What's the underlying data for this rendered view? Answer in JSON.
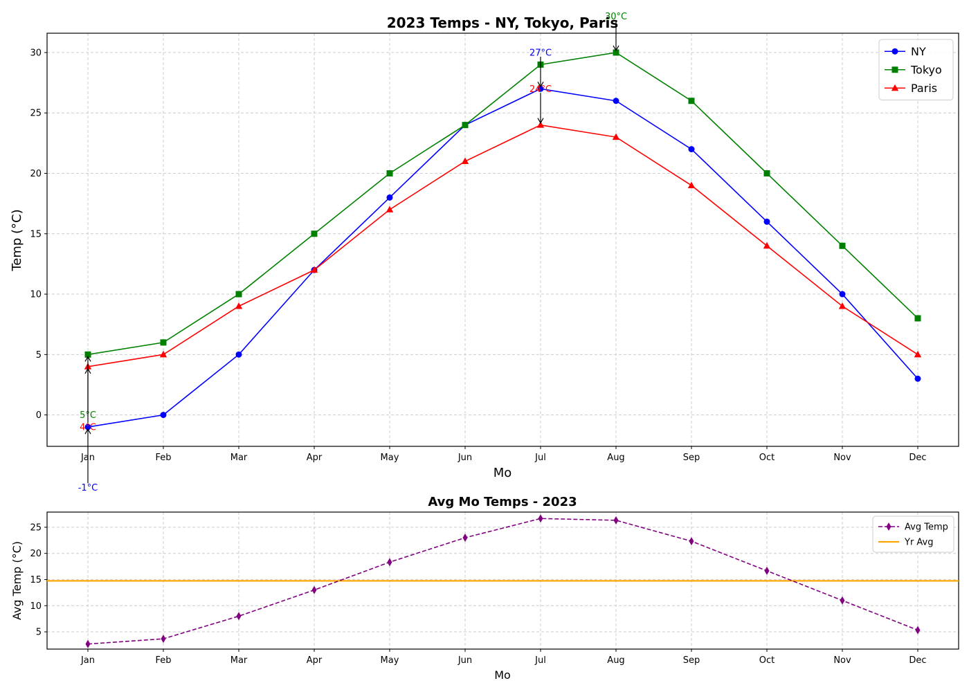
{
  "chart_data": [
    {
      "type": "line",
      "title": "2023 Temps - NY, Tokyo, Paris",
      "xlabel": "Mo",
      "ylabel": "Temp (°C)",
      "categories": [
        "Jan",
        "Feb",
        "Mar",
        "Apr",
        "May",
        "Jun",
        "Jul",
        "Aug",
        "Sep",
        "Oct",
        "Nov",
        "Dec"
      ],
      "ylim": [
        -2.6,
        31.6
      ],
      "yticks": [
        0,
        5,
        10,
        15,
        20,
        25,
        30
      ],
      "grid": true,
      "legend": "top-right",
      "series": [
        {
          "name": "NY",
          "color": "#0000ff",
          "marker": "circle",
          "values": [
            -1,
            0,
            5,
            12,
            18,
            24,
            27,
            26,
            22,
            16,
            10,
            3
          ]
        },
        {
          "name": "Tokyo",
          "color": "#008000",
          "marker": "square",
          "values": [
            5,
            6,
            10,
            15,
            20,
            24,
            29,
            30,
            26,
            20,
            14,
            8
          ]
        },
        {
          "name": "Paris",
          "color": "#ff0000",
          "marker": "triangle",
          "values": [
            4,
            5,
            9,
            12,
            17,
            21,
            24,
            23,
            19,
            14,
            9,
            5
          ]
        }
      ],
      "annotations": [
        {
          "text": "-1°C",
          "color": "#0000ff",
          "x": "Jan",
          "y": -1,
          "text_y": -6
        },
        {
          "text": "27°C",
          "color": "#0000ff",
          "x": "Jul",
          "y": 27,
          "text_y": 30
        },
        {
          "text": "5°C",
          "color": "#008000",
          "x": "Jan",
          "y": 5,
          "text_y": 0
        },
        {
          "text": "30°C",
          "color": "#008000",
          "x": "Aug",
          "y": 30,
          "text_y": 33
        },
        {
          "text": "4°C",
          "color": "#ff0000",
          "x": "Jan",
          "y": 4,
          "text_y": -1
        },
        {
          "text": "24°C",
          "color": "#ff0000",
          "x": "Jul",
          "y": 24,
          "text_y": 27
        }
      ]
    },
    {
      "type": "line",
      "title": "Avg Mo Temps - 2023",
      "xlabel": "Mo",
      "ylabel": "Avg Temp (°C)",
      "categories": [
        "Jan",
        "Feb",
        "Mar",
        "Apr",
        "May",
        "Jun",
        "Jul",
        "Aug",
        "Sep",
        "Oct",
        "Nov",
        "Dec"
      ],
      "ylim": [
        1.7,
        27.9
      ],
      "yticks": [
        5,
        10,
        15,
        20,
        25
      ],
      "grid": true,
      "legend": "top-right",
      "series": [
        {
          "name": "Avg Temp",
          "color": "#800080",
          "marker": "thin_diamond",
          "dashed": true,
          "values": [
            2.67,
            3.67,
            8.0,
            13.0,
            18.33,
            23.0,
            26.67,
            26.33,
            22.33,
            16.67,
            11.0,
            5.33
          ]
        }
      ],
      "hlines": [
        {
          "name": "Yr Avg",
          "color": "#ffa500",
          "value": 14.75
        }
      ]
    }
  ]
}
